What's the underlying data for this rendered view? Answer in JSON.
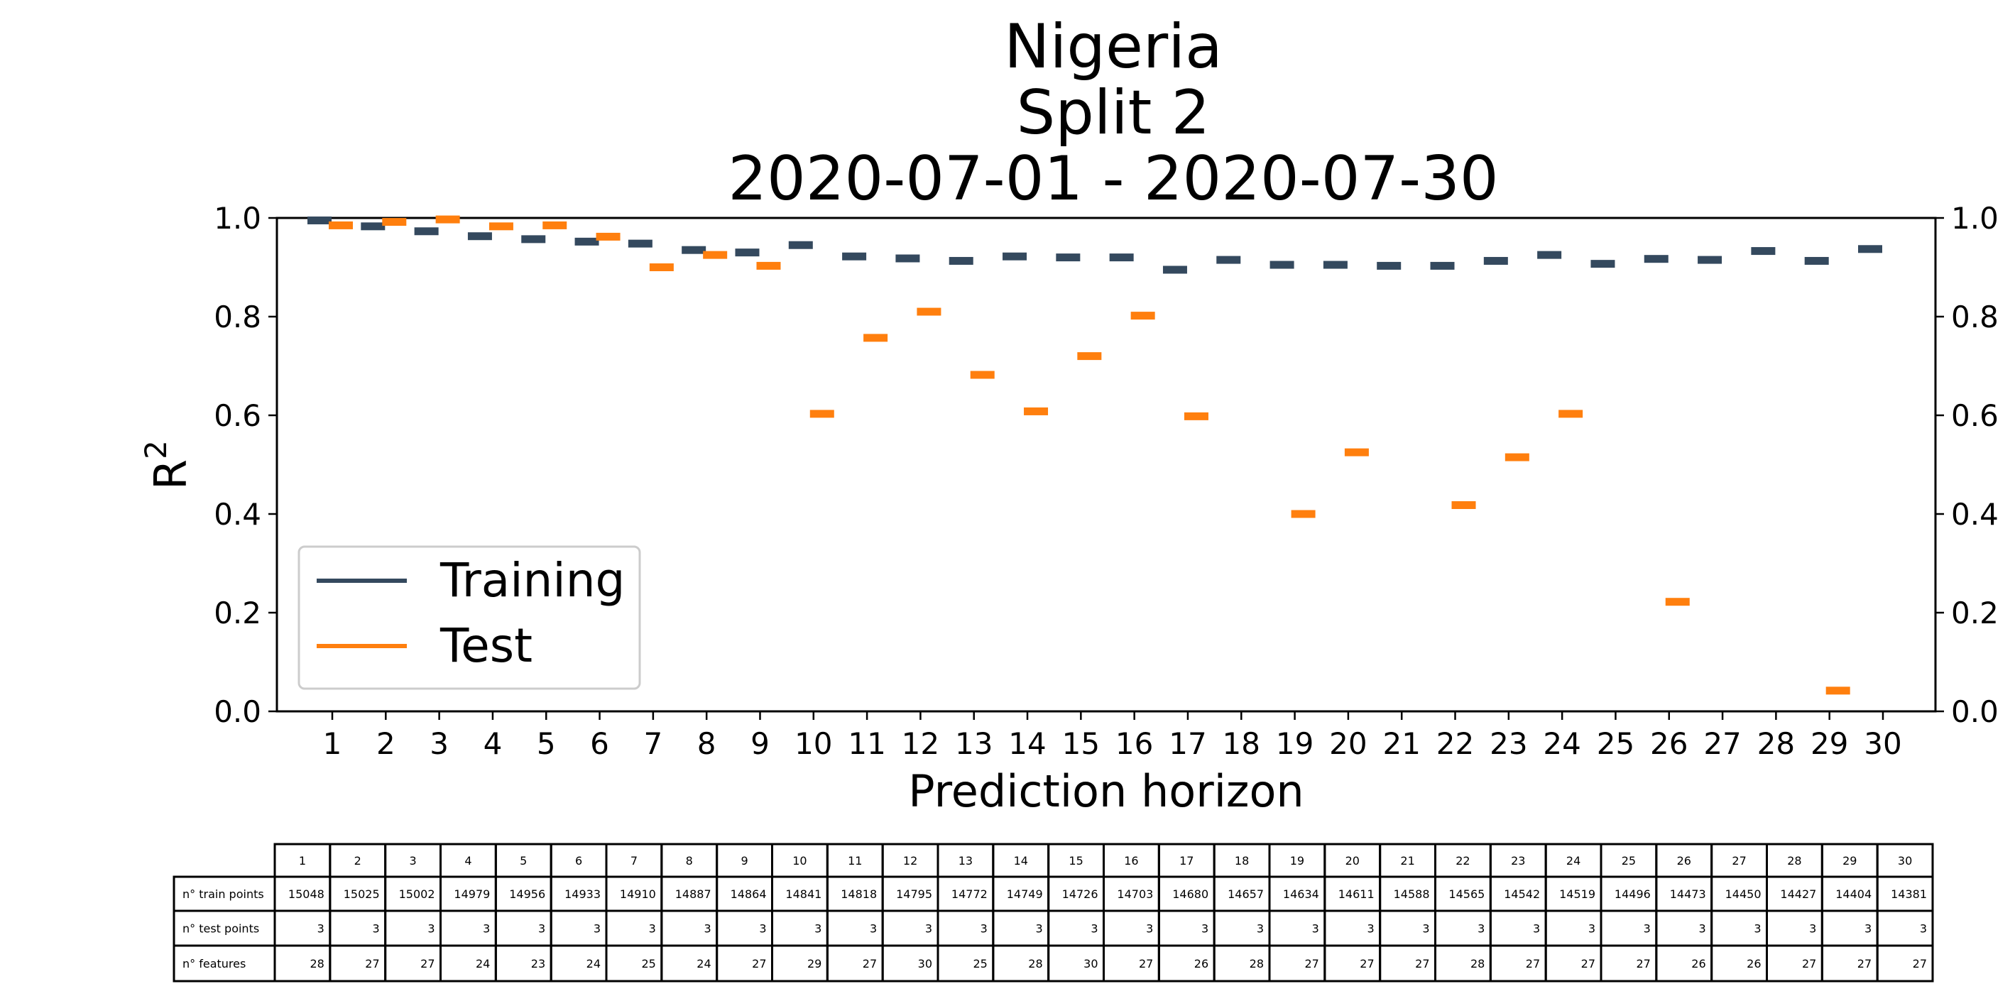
{
  "chart_data": {
    "type": "scatter",
    "title": "Nigeria\nSplit 2\n2020-07-01 - 2020-07-30",
    "title_lines": [
      "Nigeria",
      "Split 2",
      "2020-07-01 - 2020-07-30"
    ],
    "xlabel": "Prediction horizon",
    "ylabel": "R",
    "ylabel_superscript": "2",
    "ylim": [
      0.0,
      1.0
    ],
    "yticks": [
      "0.0",
      "0.2",
      "0.4",
      "0.6",
      "0.8",
      "1.0"
    ],
    "x": [
      1,
      2,
      3,
      4,
      5,
      6,
      7,
      8,
      9,
      10,
      11,
      12,
      13,
      14,
      15,
      16,
      17,
      18,
      19,
      20,
      21,
      22,
      23,
      24,
      25,
      26,
      27,
      28,
      29,
      30
    ],
    "grid": false,
    "legend_position": "lower-left",
    "series": [
      {
        "name": "Training",
        "color": "#34495e",
        "marker": "horizontal-dash",
        "values": [
          0.995,
          0.983,
          0.973,
          0.963,
          0.957,
          0.952,
          0.948,
          0.935,
          0.93,
          0.945,
          0.922,
          0.918,
          0.913,
          0.922,
          0.92,
          0.92,
          0.895,
          0.915,
          0.905,
          0.905,
          0.903,
          0.903,
          0.913,
          0.925,
          0.907,
          0.917,
          0.915,
          0.933,
          0.913,
          0.937
        ]
      },
      {
        "name": "Test",
        "color": "#ff7f0e",
        "marker": "horizontal-dash",
        "values": [
          0.985,
          0.992,
          0.997,
          0.983,
          0.985,
          0.962,
          0.9,
          0.925,
          0.903,
          0.603,
          0.757,
          0.81,
          0.682,
          0.608,
          0.72,
          0.802,
          0.598,
          null,
          0.4,
          0.525,
          null,
          0.418,
          0.515,
          0.603,
          null,
          0.222,
          null,
          null,
          0.042,
          null
        ]
      }
    ],
    "table": {
      "columns": [
        "1",
        "2",
        "3",
        "4",
        "5",
        "6",
        "7",
        "8",
        "9",
        "10",
        "11",
        "12",
        "13",
        "14",
        "15",
        "16",
        "17",
        "18",
        "19",
        "20",
        "21",
        "22",
        "23",
        "24",
        "25",
        "26",
        "27",
        "28",
        "29",
        "30"
      ],
      "rows": [
        {
          "label": "n° train points",
          "values": [
            "15048",
            "15025",
            "15002",
            "14979",
            "14956",
            "14933",
            "14910",
            "14887",
            "14864",
            "14841",
            "14818",
            "14795",
            "14772",
            "14749",
            "14726",
            "14703",
            "14680",
            "14657",
            "14634",
            "14611",
            "14588",
            "14565",
            "14542",
            "14519",
            "14496",
            "14473",
            "14450",
            "14427",
            "14404",
            "14381"
          ]
        },
        {
          "label": "n° test points",
          "values": [
            "3",
            "3",
            "3",
            "3",
            "3",
            "3",
            "3",
            "3",
            "3",
            "3",
            "3",
            "3",
            "3",
            "3",
            "3",
            "3",
            "3",
            "3",
            "3",
            "3",
            "3",
            "3",
            "3",
            "3",
            "3",
            "3",
            "3",
            "3",
            "3",
            "3"
          ]
        },
        {
          "label": "n° features",
          "values": [
            "28",
            "27",
            "27",
            "24",
            "23",
            "24",
            "25",
            "24",
            "27",
            "29",
            "27",
            "30",
            "25",
            "28",
            "30",
            "27",
            "26",
            "28",
            "27",
            "27",
            "27",
            "28",
            "27",
            "27",
            "27",
            "26",
            "26",
            "27",
            "27",
            "27"
          ]
        }
      ]
    }
  }
}
